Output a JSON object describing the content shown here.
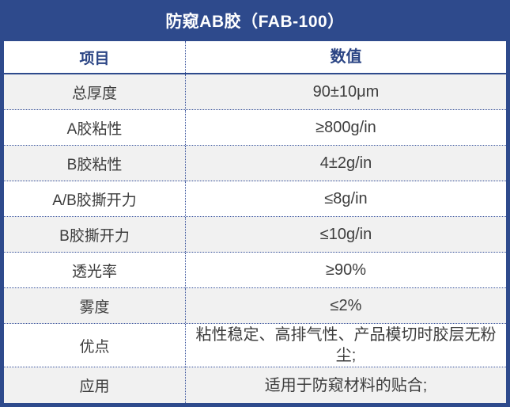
{
  "title": "防窥AB胶（FAB-100）",
  "table": {
    "columns": {
      "item": "项目",
      "value": "数值"
    },
    "rows": [
      {
        "item": "总厚度",
        "value": "90±10μm"
      },
      {
        "item": "A胶粘性",
        "value": "≥800g/in"
      },
      {
        "item": "B胶粘性",
        "value": "4±2g/in"
      },
      {
        "item": "A/B胶撕开力",
        "value": "≤8g/in"
      },
      {
        "item": "B胶撕开力",
        "value": "≤10g/in"
      },
      {
        "item": "透光率",
        "value": "≥90%"
      },
      {
        "item": "雾度",
        "value": "≤2%"
      },
      {
        "item": "优点",
        "value": "粘性稳定、高排气性、产品模切时胶层无粉尘;"
      },
      {
        "item": "应用",
        "value": "适用于防窥材料的贴合;"
      }
    ]
  },
  "colors": {
    "navy": "#2e4a8c",
    "header_text": "#2a4484",
    "body_text": "#3d3d3d",
    "stripe": "#f1f1f1",
    "row_white": "#ffffff",
    "dotted_line": "#35509a"
  }
}
